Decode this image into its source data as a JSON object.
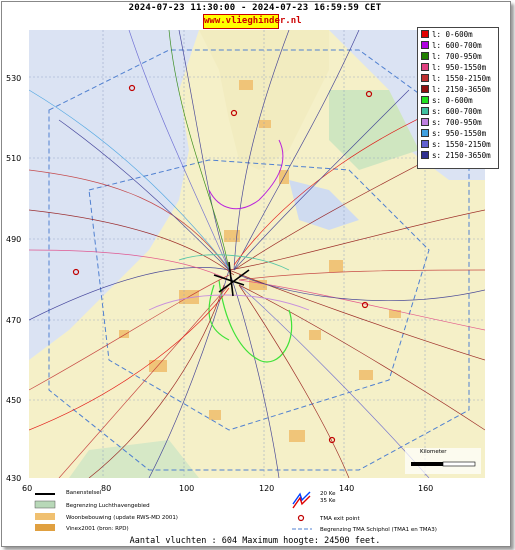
{
  "header": {
    "title": "2024-07-23 11:30:00 - 2024-07-23 16:59:59 CET",
    "site": "www.vlieghinder.nl"
  },
  "axes": {
    "y_ticks": [
      "530",
      "510",
      "490",
      "470",
      "450",
      "430"
    ],
    "x_ticks": [
      "60",
      "80",
      "100",
      "120",
      "140",
      "160"
    ]
  },
  "legend": [
    {
      "label": "l: 0-600m",
      "color": "#e00000"
    },
    {
      "label": "l: 600-700m",
      "color": "#b000e0"
    },
    {
      "label": "l: 700-950m",
      "color": "#208000"
    },
    {
      "label": "l: 950-1550m",
      "color": "#e04080"
    },
    {
      "label": "l: 1550-2150m",
      "color": "#c03030"
    },
    {
      "label": "l: 2150-3650m",
      "color": "#901010"
    },
    {
      "label": "s: 0-600m",
      "color": "#20e020"
    },
    {
      "label": "s: 600-700m",
      "color": "#40c0a0"
    },
    {
      "label": "s: 700-950m",
      "color": "#c080e0"
    },
    {
      "label": "s: 950-1550m",
      "color": "#40a0e0"
    },
    {
      "label": "s: 1550-2150m",
      "color": "#6060d0"
    },
    {
      "label": "s: 2150-3650m",
      "color": "#303090"
    }
  ],
  "bottom_legend": {
    "runway": "Banenstelsel",
    "airport_boundary": "Begrenzing Luchthavengebied",
    "housing": "Woonbebouwing (update RWS-MD 2001)",
    "vinex": "Vinex2001 (bron: RPD)",
    "kw": "20 Ke\n35 Ke",
    "tma_exit": "TMA exit point",
    "tma_boundary": "Begrenzing TMA Schiphol  (TMA1 en TMA3)"
  },
  "scale_label": "Kilometer",
  "footer": "Aantal vluchten : 604 Maximum hoogte: 24500 feet."
}
